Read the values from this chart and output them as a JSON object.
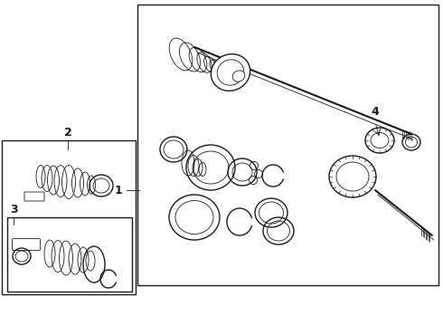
{
  "bg_color": "#ffffff",
  "line_color": "#1a1a1a",
  "label1": "1",
  "label2": "2",
  "label3": "3",
  "label4": "4"
}
